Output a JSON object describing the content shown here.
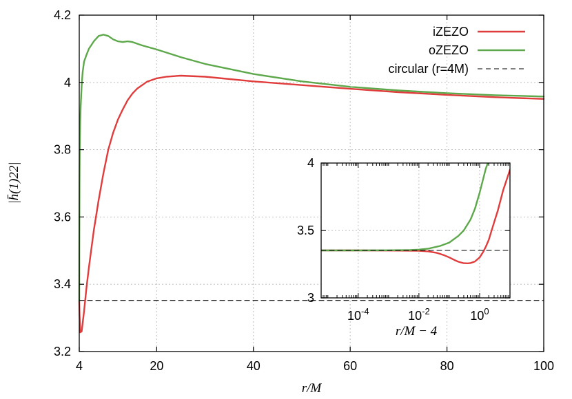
{
  "chart_data": {
    "type": "line",
    "main": {
      "xlabel": "r/M",
      "ylabel": "|h̄(1)22|",
      "xlim": [
        4,
        100
      ],
      "ylim": [
        3.2,
        4.2
      ],
      "xticks": [
        4,
        20,
        40,
        60,
        80,
        100
      ],
      "yticks": [
        3.2,
        3.4,
        3.6,
        3.8,
        4,
        4.2
      ],
      "ytick_labels": [
        "3.2",
        "3.4",
        "3.6",
        "3.8",
        "4",
        "4.2"
      ],
      "grid": true,
      "legend": "top-right",
      "series": [
        {
          "name": "iZEZO",
          "color": "#e03c3c",
          "style": "solid",
          "x": [
            4.0,
            4.05,
            4.2,
            4.5,
            5,
            5.5,
            6,
            7,
            8,
            9,
            10,
            11,
            12,
            13,
            14,
            15,
            16,
            18,
            20,
            22,
            25,
            30,
            40,
            50,
            60,
            70,
            80,
            90,
            100
          ],
          "y": [
            3.35,
            3.31,
            3.257,
            3.26,
            3.32,
            3.39,
            3.45,
            3.56,
            3.65,
            3.73,
            3.8,
            3.85,
            3.89,
            3.92,
            3.947,
            3.967,
            3.982,
            4.002,
            4.012,
            4.017,
            4.02,
            4.017,
            4.003,
            3.992,
            3.981,
            3.971,
            3.963,
            3.956,
            3.951
          ]
        },
        {
          "name": "oZEZO",
          "color": "#5da84a",
          "style": "solid",
          "x": [
            4.0,
            4.01,
            4.05,
            4.1,
            4.2,
            4.3,
            4.5,
            4.7,
            5,
            5.5,
            6,
            7,
            8,
            9,
            10,
            11,
            12,
            13,
            14,
            15,
            16,
            17,
            18,
            20,
            25,
            30,
            40,
            50,
            60,
            70,
            80,
            90,
            100
          ],
          "y": [
            3.35,
            3.5,
            3.7,
            3.8,
            3.88,
            3.93,
            3.99,
            4.03,
            4.062,
            4.082,
            4.1,
            4.122,
            4.138,
            4.142,
            4.138,
            4.128,
            4.122,
            4.12,
            4.122,
            4.12,
            4.115,
            4.11,
            4.106,
            4.098,
            4.075,
            4.055,
            4.025,
            4.003,
            3.987,
            3.976,
            3.968,
            3.962,
            3.958
          ]
        },
        {
          "name": "circular (r=4M)",
          "color": "#000000",
          "style": "dashed",
          "x": [
            4,
            100
          ],
          "y": [
            3.352,
            3.352
          ]
        }
      ]
    },
    "inset": {
      "xlabel": "r/M − 4",
      "xscale": "log",
      "xlim": [
        6e-06,
        10
      ],
      "ylim": [
        3,
        4
      ],
      "xticks": [
        0.0001,
        0.01,
        1
      ],
      "xtick_base": "10",
      "xtick_exponents": [
        "-4",
        "-2",
        "0"
      ],
      "yticks": [
        3,
        3.5,
        4
      ],
      "ytick_labels": [
        "3",
        "3.5",
        "4"
      ],
      "grid": true,
      "series": [
        {
          "name": "iZEZO",
          "color": "#e03c3c",
          "style": "solid",
          "x": [
            6e-06,
            0.0001,
            0.001,
            0.005,
            0.01,
            0.02,
            0.04,
            0.07,
            0.1,
            0.15,
            0.2,
            0.3,
            0.4,
            0.5,
            0.7,
            1.0,
            1.3,
            1.6,
            2,
            3,
            4,
            6,
            10
          ],
          "y": [
            3.352,
            3.352,
            3.351,
            3.35,
            3.349,
            3.345,
            3.333,
            3.315,
            3.3,
            3.28,
            3.268,
            3.257,
            3.256,
            3.258,
            3.27,
            3.3,
            3.34,
            3.38,
            3.43,
            3.56,
            3.65,
            3.8,
            3.95
          ]
        },
        {
          "name": "oZEZO",
          "color": "#5da84a",
          "style": "solid",
          "x": [
            6e-06,
            0.0001,
            0.001,
            0.005,
            0.01,
            0.02,
            0.05,
            0.1,
            0.2,
            0.3,
            0.5,
            0.7,
            1.0,
            1.3,
            1.6,
            2.0
          ],
          "y": [
            3.352,
            3.352,
            3.353,
            3.355,
            3.358,
            3.365,
            3.385,
            3.41,
            3.46,
            3.5,
            3.58,
            3.66,
            3.78,
            3.88,
            3.96,
            4.02
          ]
        },
        {
          "name": "circular (r=4M)",
          "color": "#000000",
          "style": "dashed",
          "x": [
            6e-06,
            10
          ],
          "y": [
            3.352,
            3.352
          ]
        }
      ]
    }
  }
}
